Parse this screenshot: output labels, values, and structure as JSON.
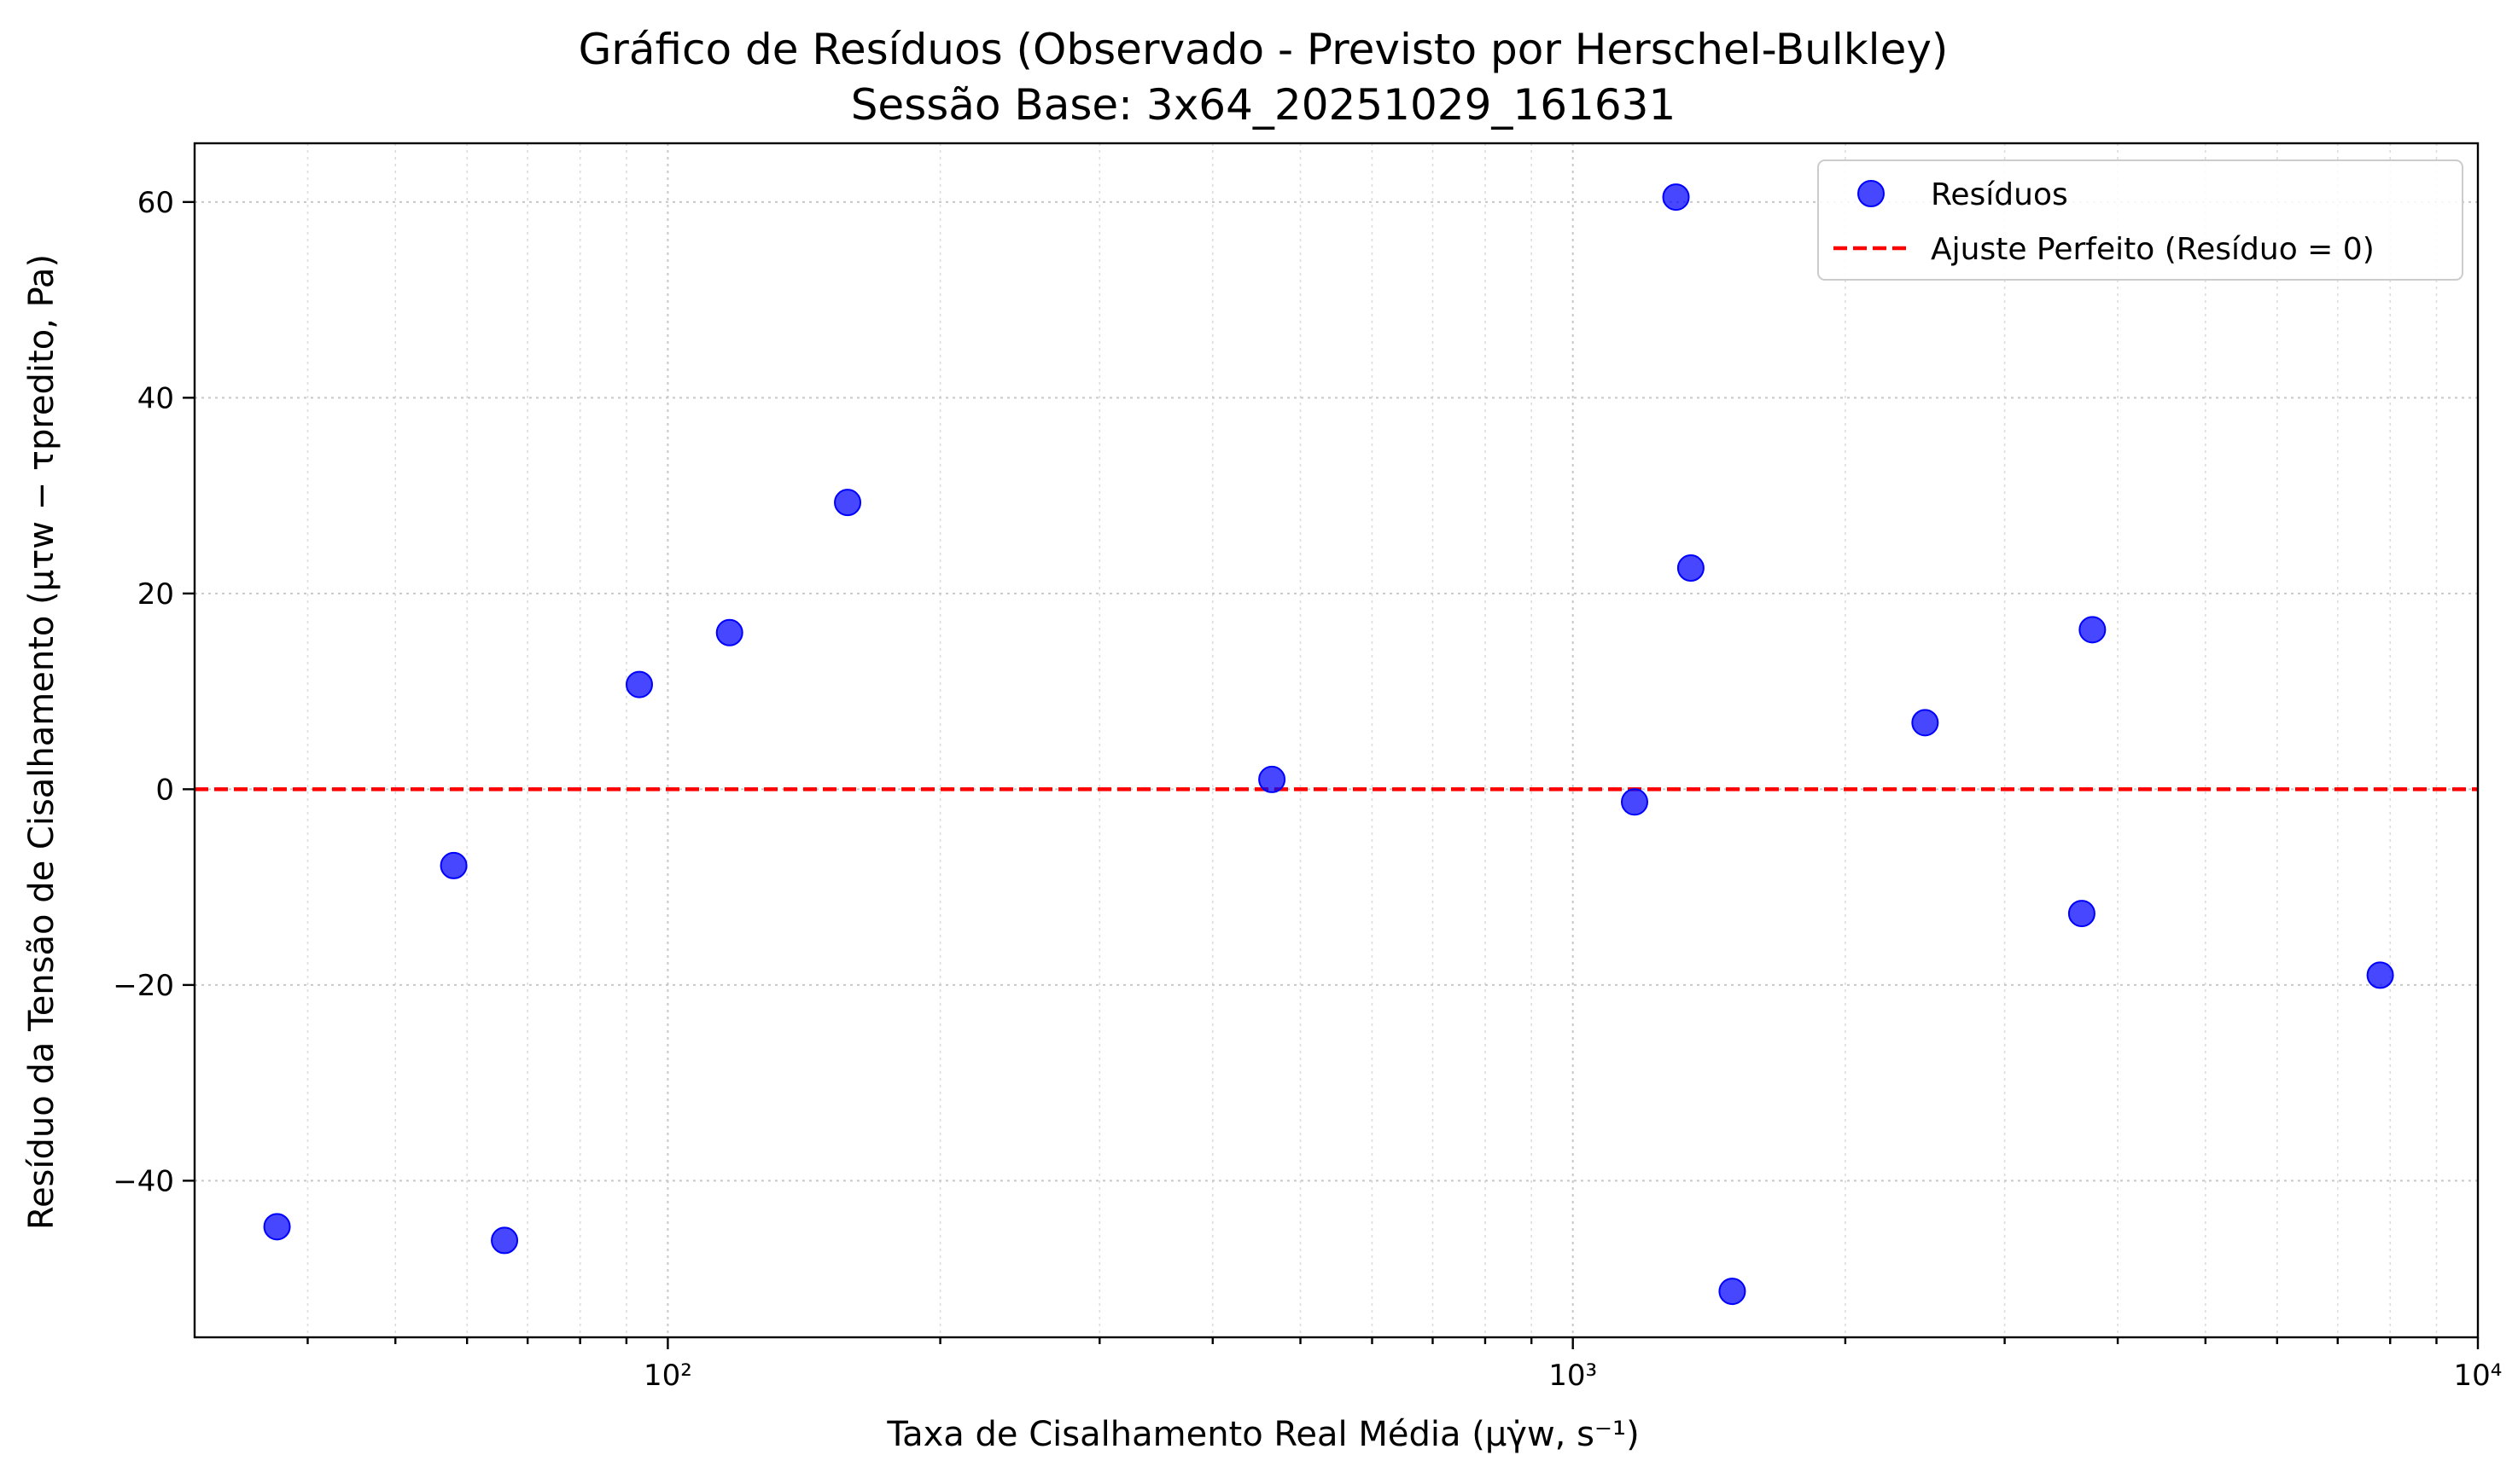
{
  "chart_data": {
    "type": "scatter",
    "title": "Gráfico de Resíduos (Observado - Previsto por Herschel-Bulkley)",
    "subtitle": "Sessão Base: 3x64_20251029_161631",
    "xlabel": "Taxa de Cisalhamento Real Média (μγ̇w, s⁻¹)",
    "ylabel": "Resíduo da Tensão de Cisalhamento (μτw − τpredito, Pa)",
    "xscale": "log",
    "xlim": [
      30,
      10000
    ],
    "ylim": [
      -56,
      66
    ],
    "x_ticks": [
      100,
      1000,
      10000
    ],
    "x_tick_labels": [
      "10²",
      "10³",
      "10⁴"
    ],
    "y_ticks": [
      -40,
      -20,
      0,
      20,
      40,
      60
    ],
    "y_tick_labels": [
      "−40",
      "−20",
      "0",
      "20",
      "40",
      "60"
    ],
    "grid": true,
    "legend_position": "top-right",
    "colors": {
      "points": "#0000ff",
      "reference_line": "#ff0000"
    },
    "series": [
      {
        "name": "Resíduos",
        "points": [
          {
            "x": 37,
            "y": -44.7
          },
          {
            "x": 58,
            "y": -7.8
          },
          {
            "x": 66,
            "y": -46.1
          },
          {
            "x": 93,
            "y": 10.7
          },
          {
            "x": 117,
            "y": 16.0
          },
          {
            "x": 158,
            "y": 29.3
          },
          {
            "x": 465,
            "y": 1.0
          },
          {
            "x": 1170,
            "y": -1.3
          },
          {
            "x": 1300,
            "y": 60.5
          },
          {
            "x": 1350,
            "y": 22.6
          },
          {
            "x": 1500,
            "y": -51.3
          },
          {
            "x": 2450,
            "y": 6.8
          },
          {
            "x": 3650,
            "y": -12.7
          },
          {
            "x": 3750,
            "y": 16.3
          },
          {
            "x": 7800,
            "y": -19.0
          }
        ]
      },
      {
        "name": "Ajuste Perfeito (Resíduo = 0)",
        "type": "hline",
        "y": 0
      }
    ]
  }
}
